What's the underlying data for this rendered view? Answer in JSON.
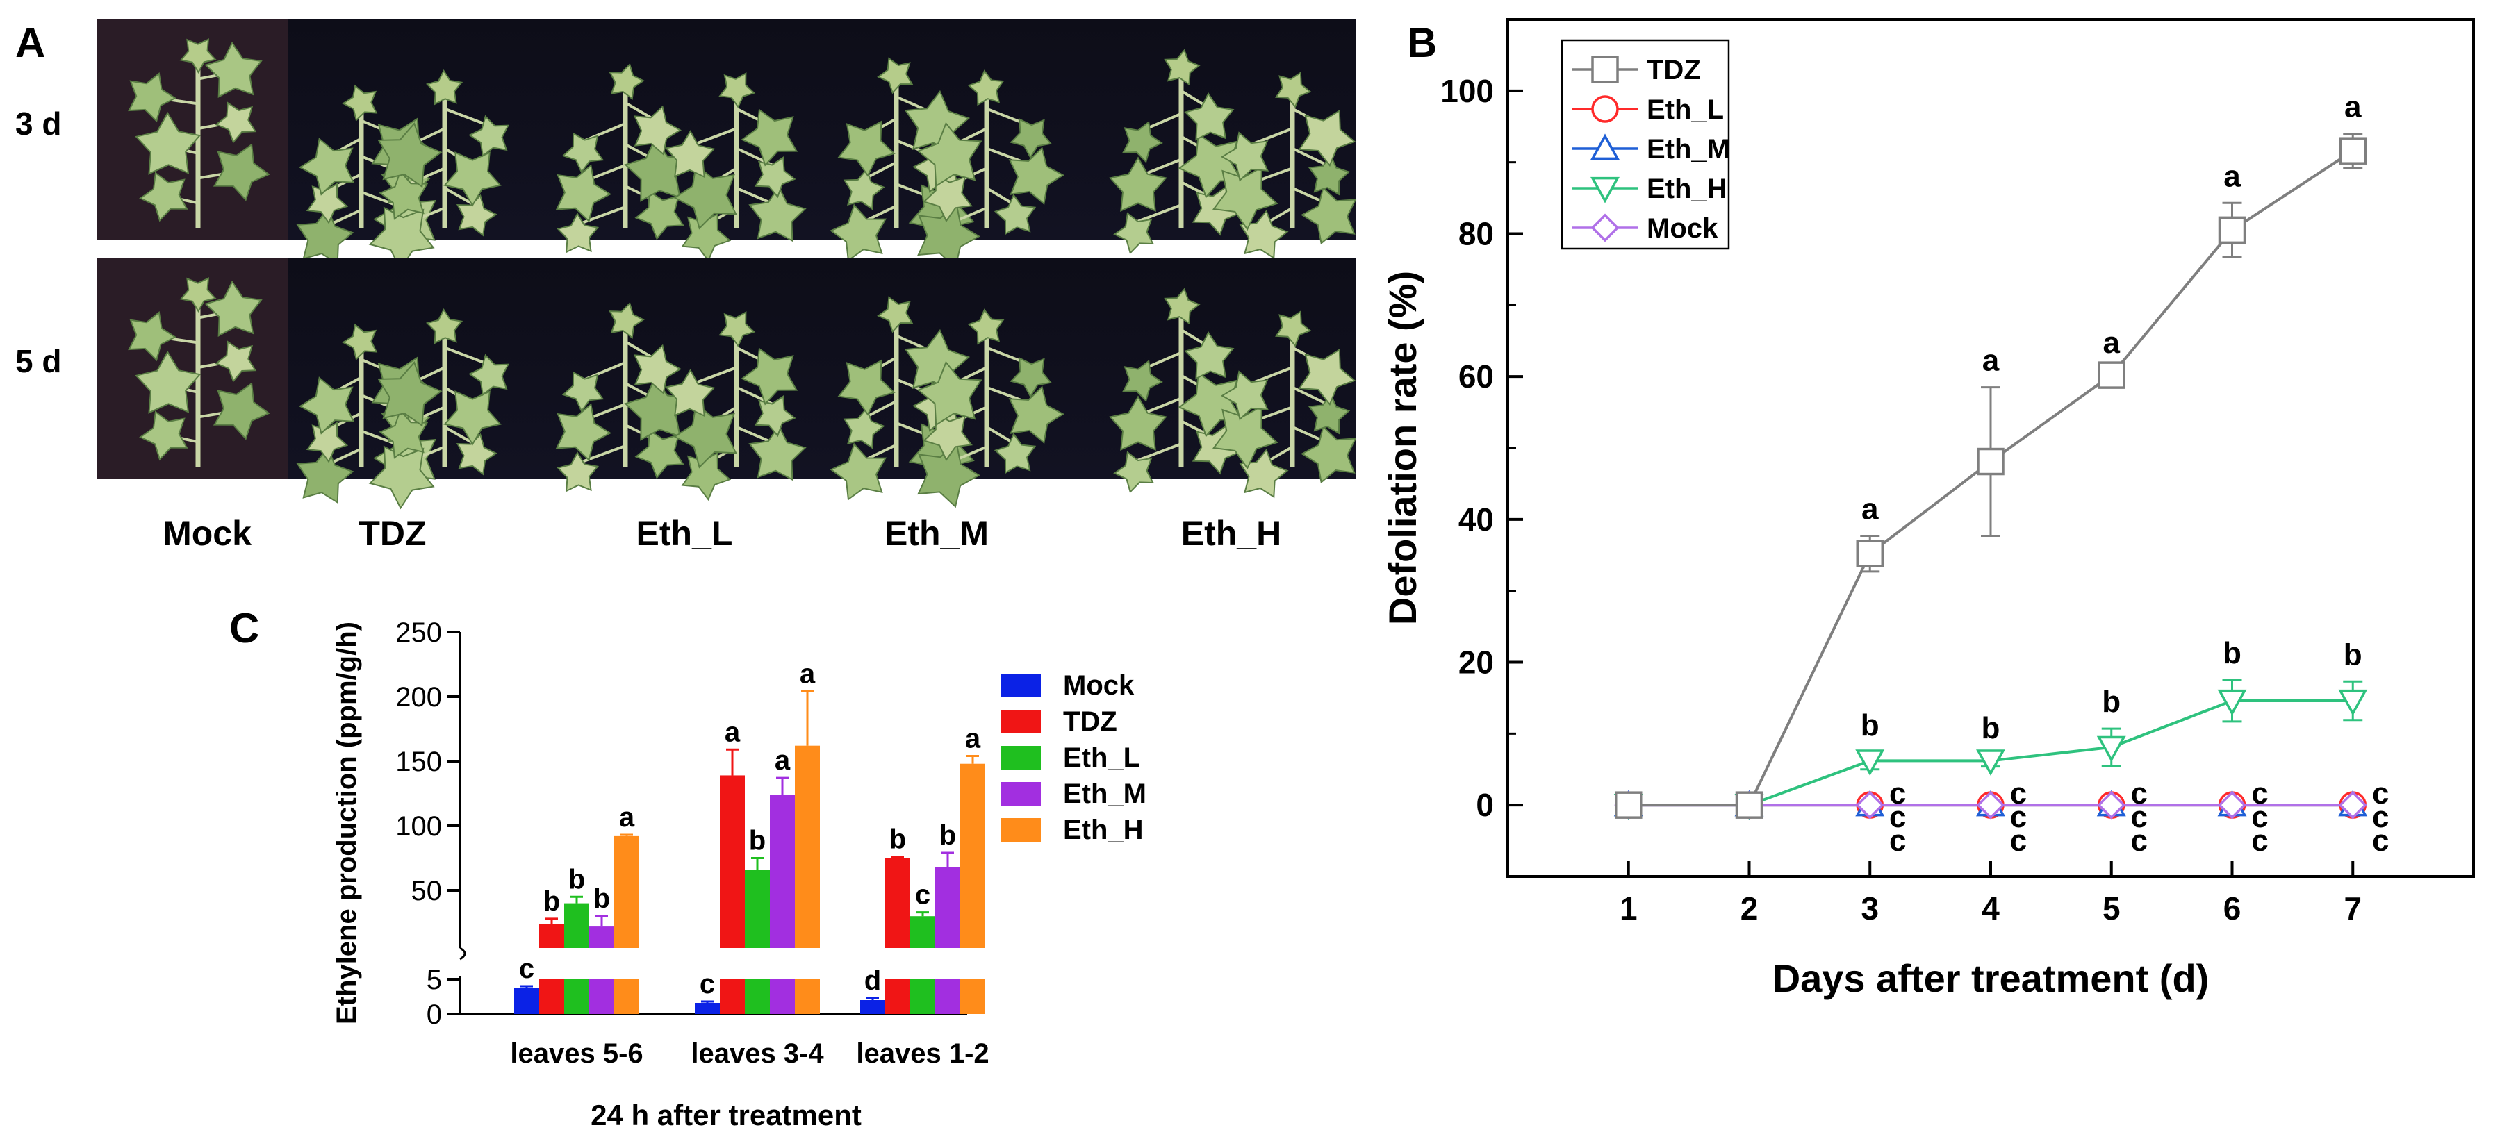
{
  "panel_a": {
    "letter": "A",
    "rows": [
      "3 d",
      "5 d"
    ],
    "columns": [
      "Mock",
      "TDZ",
      "Eth_L",
      "Eth_M",
      "Eth_H"
    ]
  },
  "chart_data": [
    {
      "panel": "B",
      "type": "line",
      "xlabel": "Days after treatment (d)",
      "ylabel": "Defoliation rate  (%)",
      "x": [
        1,
        2,
        3,
        4,
        5,
        6,
        7
      ],
      "xlim": [
        0,
        8
      ],
      "ylim": [
        -10,
        110
      ],
      "yticks": [
        0,
        20,
        40,
        60,
        80,
        100
      ],
      "legend": "top-left",
      "series": [
        {
          "name": "TDZ",
          "color": "#7f7f7f",
          "marker": "square",
          "values": [
            0,
            0,
            35.2,
            48.1,
            60.2,
            80.5,
            91.6
          ],
          "errors": [
            0,
            0,
            2.5,
            10.4,
            0.8,
            3.8,
            2.4
          ],
          "letters": [
            "",
            "",
            "a",
            "a",
            "a",
            "a",
            "a"
          ]
        },
        {
          "name": "Eth_L",
          "color": "#ff2a2a",
          "marker": "circle",
          "values": [
            0,
            0,
            0,
            0,
            0,
            0,
            0
          ],
          "errors": [
            0,
            0,
            0,
            0,
            0,
            0,
            0
          ],
          "letters": [
            "",
            "",
            "c",
            "c",
            "c",
            "c",
            "c"
          ]
        },
        {
          "name": "Eth_M",
          "color": "#1f5fd6",
          "marker": "triangle-up",
          "values": [
            0,
            0,
            0,
            0,
            0,
            0,
            0
          ],
          "errors": [
            0,
            0,
            0,
            0,
            0,
            0,
            0
          ],
          "letters": [
            "",
            "",
            "c",
            "c",
            "c",
            "c",
            "c"
          ]
        },
        {
          "name": "Eth_H",
          "color": "#2ec27e",
          "marker": "triangle-down",
          "values": [
            0,
            0,
            6.2,
            6.2,
            8.1,
            14.6,
            14.6
          ],
          "errors": [
            0,
            0,
            1.2,
            0.8,
            2.6,
            2.9,
            2.7
          ],
          "letters": [
            "",
            "",
            "b",
            "b",
            "b",
            "b",
            "b"
          ]
        },
        {
          "name": "Mock",
          "color": "#b070e8",
          "marker": "diamond",
          "values": [
            0,
            0,
            0,
            0,
            0,
            0,
            0
          ],
          "errors": [
            0,
            0,
            0,
            0,
            0,
            0,
            0
          ],
          "letters": [
            "",
            "",
            "c",
            "c",
            "c",
            "c",
            "c"
          ]
        }
      ]
    },
    {
      "panel": "C",
      "type": "bar",
      "title": "",
      "xlabel": "24 h after treatment",
      "ylabel": "Ethylene production (ppm/g/h)",
      "categories": [
        "leaves 5-6",
        "leaves 3-4",
        "leaves 1-2"
      ],
      "y_break": {
        "lower_range": [
          0,
          5
        ],
        "upper_range": [
          5,
          250
        ],
        "lower_ticks": [
          0,
          5
        ],
        "upper_ticks": [
          50,
          100,
          150,
          200,
          250
        ]
      },
      "legend": "right",
      "series": [
        {
          "name": "Mock",
          "color": "#0b22e6",
          "values": [
            3.8,
            1.6,
            2.0
          ],
          "errors": [
            0.2,
            0.2,
            0.3
          ],
          "letters": [
            "c",
            "c",
            "d"
          ]
        },
        {
          "name": "TDZ",
          "color": "#f01515",
          "values": [
            24,
            139,
            75
          ],
          "errors": [
            4,
            20,
            1
          ],
          "letters": [
            "b",
            "a",
            "b"
          ]
        },
        {
          "name": "Eth_L",
          "color": "#1fbf1f",
          "values": [
            40,
            66,
            30
          ],
          "errors": [
            5,
            9,
            3
          ],
          "letters": [
            "b",
            "b",
            "c"
          ]
        },
        {
          "name": "Eth_M",
          "color": "#a22fe0",
          "values": [
            22,
            124,
            68
          ],
          "errors": [
            8,
            13,
            11
          ],
          "letters": [
            "b",
            "a",
            "b"
          ]
        },
        {
          "name": "Eth_H",
          "color": "#ff8c1a",
          "values": [
            92,
            162,
            148
          ],
          "errors": [
            1,
            42,
            6
          ],
          "letters": [
            "a",
            "a",
            "a"
          ]
        }
      ]
    }
  ]
}
